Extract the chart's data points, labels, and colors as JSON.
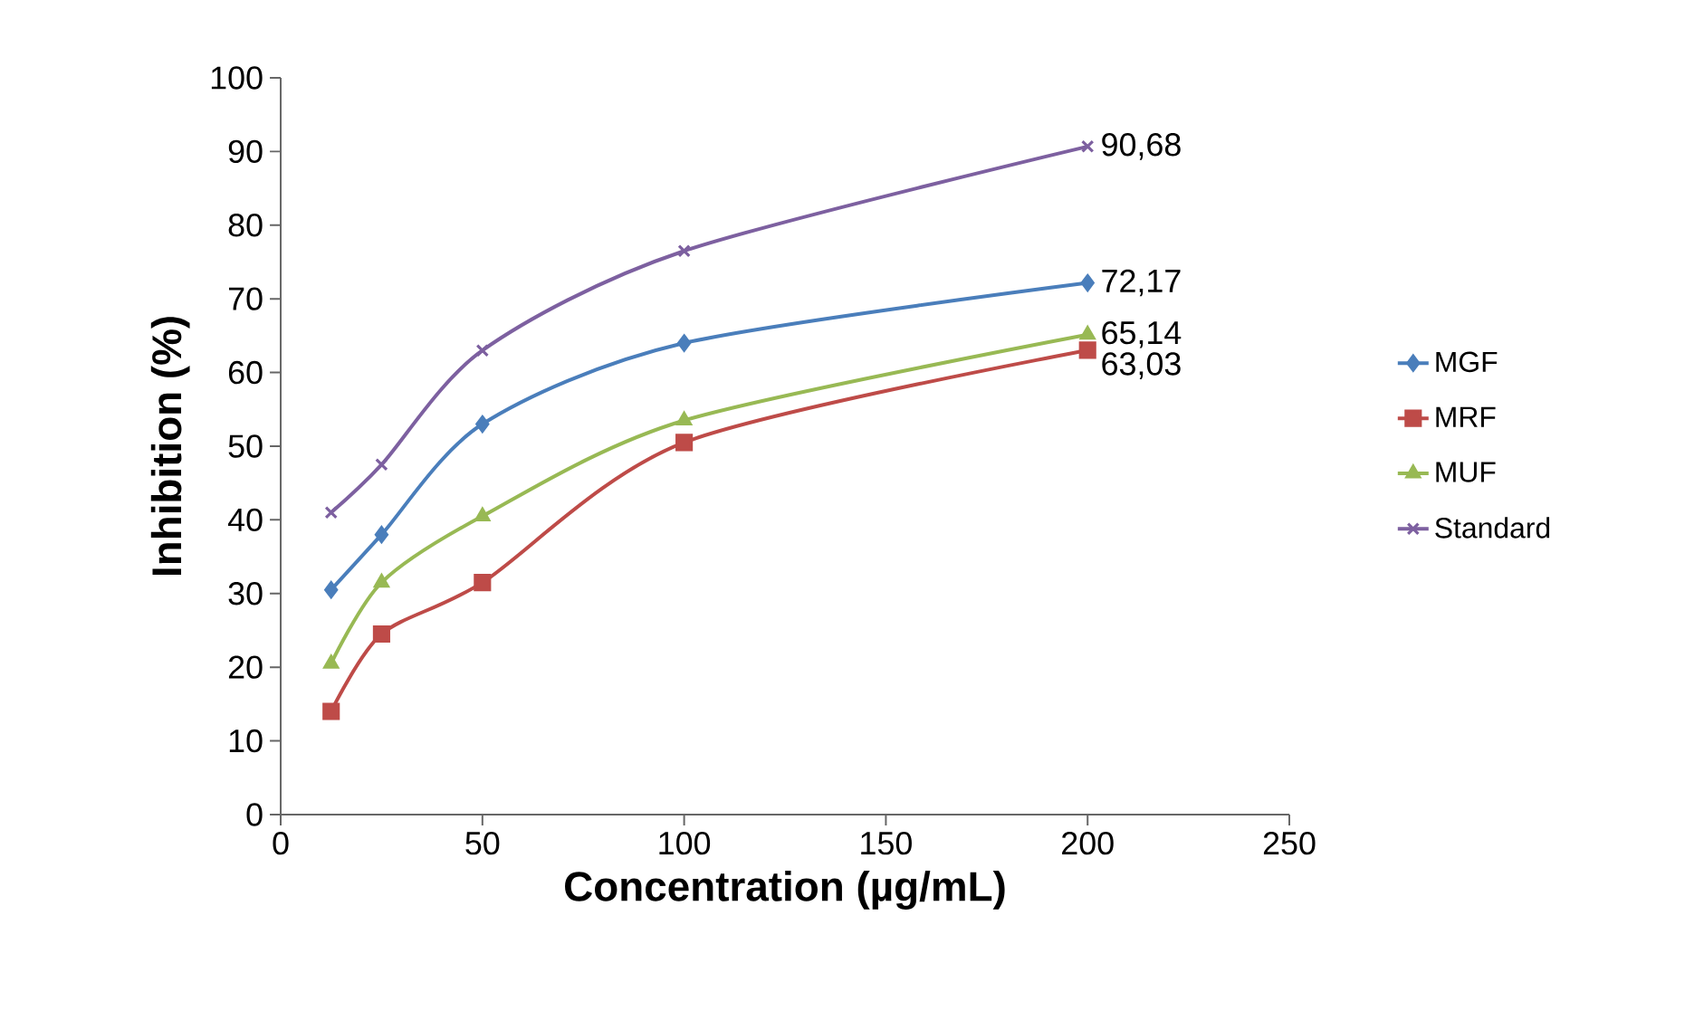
{
  "chart_data": {
    "type": "line",
    "xlabel": "Concentration (µg/mL)",
    "ylabel": "Inhibition (%)",
    "x": [
      12.5,
      25,
      50,
      100,
      200
    ],
    "xlim": [
      0,
      250
    ],
    "xticks": [
      0,
      50,
      100,
      150,
      200,
      250
    ],
    "ylim": [
      0,
      100
    ],
    "yticks": [
      0,
      10,
      20,
      30,
      40,
      50,
      60,
      70,
      80,
      90,
      100
    ],
    "grid": false,
    "legend": "right",
    "line_style": "solid",
    "series": [
      {
        "name": "MGF",
        "color": "#4a7ebb",
        "marker": "diamond",
        "values": [
          30.5,
          38,
          53,
          64,
          72.17
        ],
        "value_labels": [
          null,
          null,
          null,
          null,
          "72,17"
        ]
      },
      {
        "name": "MRF",
        "color": "#be4b48",
        "marker": "square",
        "values": [
          14,
          24.5,
          31.5,
          50.5,
          63.03
        ],
        "value_labels": [
          null,
          null,
          null,
          null,
          "63,03"
        ]
      },
      {
        "name": "MUF",
        "color": "#98b954",
        "marker": "triangle",
        "values": [
          20.5,
          31.5,
          40.5,
          53.5,
          65.14
        ],
        "value_labels": [
          null,
          null,
          null,
          null,
          "65,14"
        ]
      },
      {
        "name": "Standard",
        "color": "#7d60a0",
        "marker": "cross",
        "values": [
          41,
          47.5,
          63,
          76.5,
          90.68
        ],
        "value_labels": [
          null,
          null,
          null,
          null,
          "90,68"
        ]
      }
    ]
  }
}
